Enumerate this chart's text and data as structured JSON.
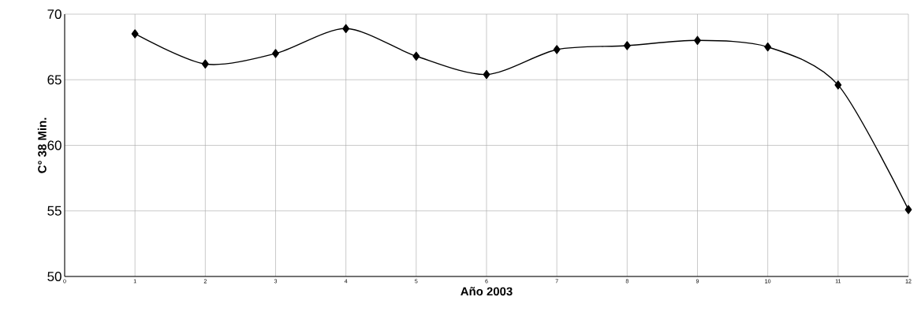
{
  "chart_data": {
    "type": "line",
    "xlabel": "Año 2003",
    "ylabel": "C°   38 Min.",
    "x": [
      1,
      2,
      3,
      4,
      5,
      6,
      7,
      8,
      9,
      10,
      11,
      12
    ],
    "series": [
      {
        "color": "#000000",
        "values": [
          68.5,
          66.2,
          67.0,
          68.9,
          66.8,
          65.4,
          67.3,
          67.6,
          68.0,
          67.5,
          64.6,
          55.1
        ]
      }
    ],
    "xlim": [
      0,
      12
    ],
    "xticks": [
      0,
      1,
      2,
      3,
      4,
      5,
      6,
      7,
      8,
      9,
      10,
      11,
      12
    ],
    "ylim": [
      50,
      70
    ],
    "yticks": [
      50,
      55,
      60,
      65,
      70
    ],
    "grid": true,
    "marker": "diamond",
    "line_style": "solid"
  }
}
